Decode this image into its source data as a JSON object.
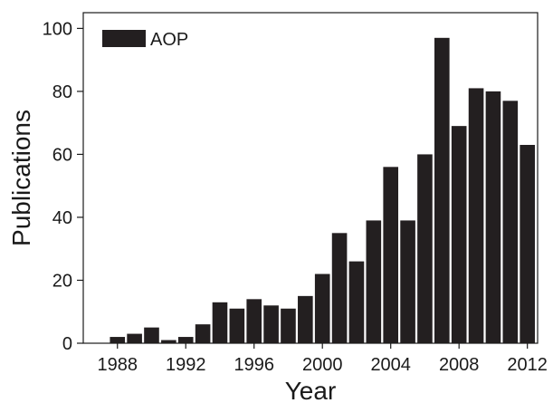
{
  "chart_data": {
    "type": "bar",
    "xlabel": "Year",
    "ylabel": "Publications",
    "ylim": [
      0,
      105
    ],
    "xlim": [
      1986.0,
      2012.6
    ],
    "x_ticks": [
      1988,
      1992,
      1996,
      2000,
      2004,
      2008,
      2012
    ],
    "y_ticks": [
      0,
      20,
      40,
      60,
      80,
      100
    ],
    "grid": false,
    "legend_position": "top-left",
    "bar_color": "#231f20",
    "series": [
      {
        "name": "AOP",
        "x": [
          1988,
          1989,
          1990,
          1991,
          1992,
          1993,
          1994,
          1995,
          1996,
          1997,
          1998,
          1999,
          2000,
          2001,
          2002,
          2003,
          2004,
          2005,
          2006,
          2007,
          2008,
          2009,
          2010,
          2011,
          2012
        ],
        "values": [
          2,
          3,
          5,
          1,
          2,
          6,
          13,
          11,
          14,
          12,
          11,
          15,
          22,
          35,
          26,
          39,
          56,
          39,
          60,
          97,
          69,
          81,
          80,
          77,
          63
        ]
      }
    ]
  }
}
